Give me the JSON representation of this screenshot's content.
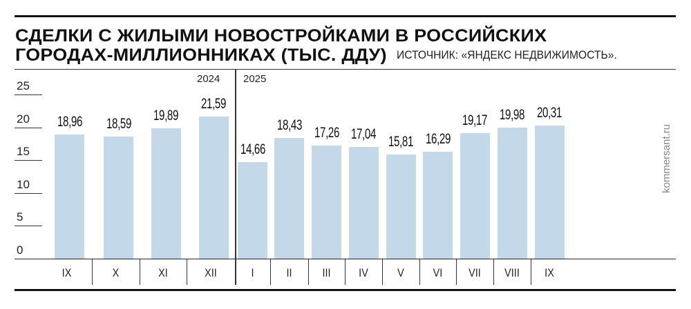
{
  "header": {
    "title_line1": "СДЕЛКИ С ЖИЛЫМИ НОВОСТРОЙКАМИ В РОССИЙСКИХ",
    "title_line2": "ГОРОДАХ-МИЛЛИОННИКАХ (ТЫС. ДДУ)",
    "source": "ИСТОЧНИК: «ЯНДЕКС НЕДВИЖИМОСТЬ»."
  },
  "watermark": "kommersant.ru",
  "colors": {
    "bar": "#c3d9ea",
    "text": "#111111",
    "rule": "#111111"
  },
  "chart_data": {
    "type": "bar",
    "title": "Сделки с жилыми новостройками в российских городах-миллионниках (тыс. ДДУ)",
    "source": "Источник: «Яндекс Недвижимость».",
    "xlabel": "",
    "ylabel": "тыс. ДДУ",
    "ylim": [
      0,
      25
    ],
    "yticks": [
      "0",
      "5",
      "10",
      "15",
      "20",
      "25"
    ],
    "grid": false,
    "groups": [
      {
        "year": "2024",
        "categories": [
          "IX",
          "X",
          "XI",
          "XII"
        ]
      },
      {
        "year": "2025",
        "categories": [
          "I",
          "II",
          "III",
          "IV",
          "V",
          "VI",
          "VII",
          "VIII",
          "IX"
        ]
      }
    ],
    "categories": [
      "IX",
      "X",
      "XI",
      "XII",
      "I",
      "II",
      "III",
      "IV",
      "V",
      "VI",
      "VII",
      "VIII",
      "IX"
    ],
    "values": [
      18.96,
      18.59,
      19.89,
      21.59,
      14.66,
      18.43,
      17.26,
      17.04,
      15.81,
      16.29,
      19.17,
      19.98,
      20.31
    ],
    "value_labels": [
      "18,96",
      "18,59",
      "19,89",
      "21,59",
      "14,66",
      "18,43",
      "17,26",
      "17,04",
      "15,81",
      "16,29",
      "19,17",
      "19,98",
      "20,31"
    ]
  }
}
